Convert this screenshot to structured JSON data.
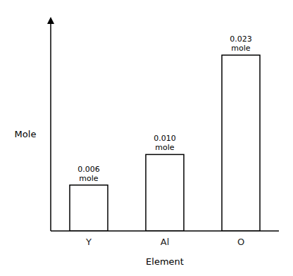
{
  "chart_data": {
    "type": "bar",
    "categories": [
      "Y",
      "Al",
      "O"
    ],
    "values": [
      0.006,
      0.01,
      0.023
    ],
    "value_labels": [
      "0.006\nmole",
      "0.010\nmole",
      "0.023\nmole"
    ],
    "data_labels": true,
    "xlabel": "Element",
    "ylabel": "Mole",
    "color": "#ffffff",
    "ylim": [
      0,
      0.028
    ],
    "tick_labels": "x",
    "grid": false
  }
}
